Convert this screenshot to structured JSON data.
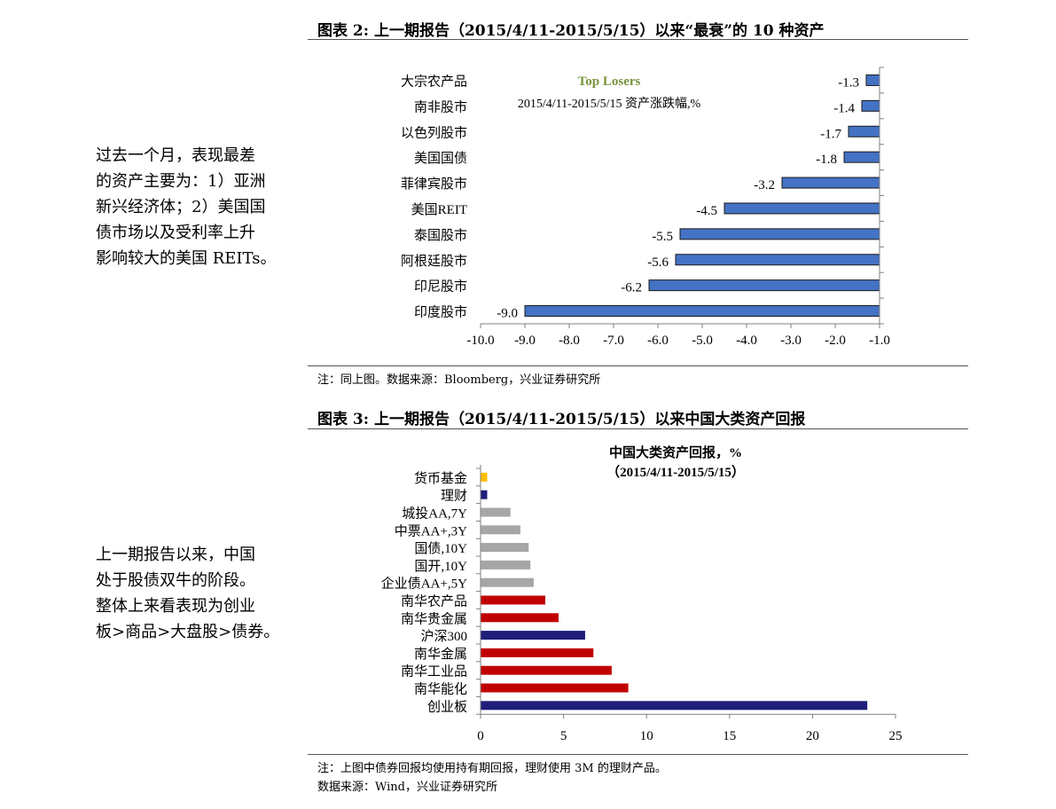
{
  "sidebar": {
    "text1": "过去一个月，表现最差\n的资产主要为：1）亚洲\n新兴经济体；2）美国国\n债市场以及受利率上升\n影响较大的美国 REITs。",
    "text2": "上一期报告以来，中国\n处于股债双牛的阶段。\n整体上来看表现为创业\n板>商品>大盘股>债券。"
  },
  "figures": [
    {
      "title": "图表 2:  上一期报告（2015/4/11-2015/5/15）以来“最衰”的 10 种资产",
      "note": "注：同上图。数据来源：Bloomberg，兴业证券研究所"
    },
    {
      "title": "图表 3:  上一期报告（2015/4/11-2015/5/15）以来中国大类资产回报",
      "note_line1": "注：上图中债券回报均使用持有期回报，理财使用 3M 的理财产品。",
      "note_line2": "数据来源：Wind，兴业证券研究所"
    }
  ],
  "chart_data": [
    {
      "type": "bar",
      "orientation": "horizontal",
      "title": "Top Losers",
      "subtitle": "2015/4/11-2015/5/15 资产涨跌幅,%",
      "categories": [
        "大宗农产品",
        "南非股市",
        "以色列股市",
        "美国国债",
        "菲律宾股市",
        "美国REIT",
        "泰国股市",
        "阿根廷股市",
        "印尼股市",
        "印度股市"
      ],
      "values": [
        -1.3,
        -1.4,
        -1.7,
        -1.8,
        -3.2,
        -4.5,
        -5.5,
        -5.6,
        -6.2,
        -9.0
      ],
      "labels": [
        "-1.3",
        "-1.4",
        "-1.7",
        "-1.8",
        "-3.2",
        "-4.5",
        "-5.5",
        "-5.6",
        "-6.2",
        "-9.0"
      ],
      "xlim": [
        -10.0,
        -1.0
      ],
      "xticks": [
        -10.0,
        -9.0,
        -8.0,
        -7.0,
        -6.0,
        -5.0,
        -4.0,
        -3.0,
        -2.0,
        -1.0
      ],
      "xtick_labels": [
        "-10.0",
        "-9.0",
        "-8.0",
        "-7.0",
        "-6.0",
        "-5.0",
        "-4.0",
        "-3.0",
        "-2.0",
        "-1.0"
      ],
      "bar_color": "#4472c4",
      "title_color": "#77933c"
    },
    {
      "type": "bar",
      "orientation": "horizontal",
      "title": "中国大类资产回报，%",
      "subtitle": "（2015/4/11-2015/5/15）",
      "categories": [
        "货币基金",
        "理财",
        "城投AA,7Y",
        "中票AA+,3Y",
        "国债,10Y",
        "国开,10Y",
        "企业债AA+,5Y",
        "南华农产品",
        "南华贵金属",
        "沪深300",
        "南华金属",
        "南华工业品",
        "南华能化",
        "创业板"
      ],
      "values": [
        0.4,
        0.4,
        1.8,
        2.4,
        2.9,
        3.0,
        3.2,
        3.9,
        4.7,
        6.3,
        6.8,
        7.9,
        8.9,
        23.3
      ],
      "colors": [
        "#ffc000",
        "#1f1f7a",
        "#a6a6a6",
        "#a6a6a6",
        "#a6a6a6",
        "#a6a6a6",
        "#a6a6a6",
        "#c00000",
        "#c00000",
        "#1f1f7a",
        "#c00000",
        "#c00000",
        "#c00000",
        "#1f1f7a"
      ],
      "xlim": [
        0,
        25
      ],
      "xticks": [
        0,
        5,
        10,
        15,
        20,
        25
      ],
      "xtick_labels": [
        "0",
        "5",
        "10",
        "15",
        "20",
        "25"
      ]
    }
  ]
}
